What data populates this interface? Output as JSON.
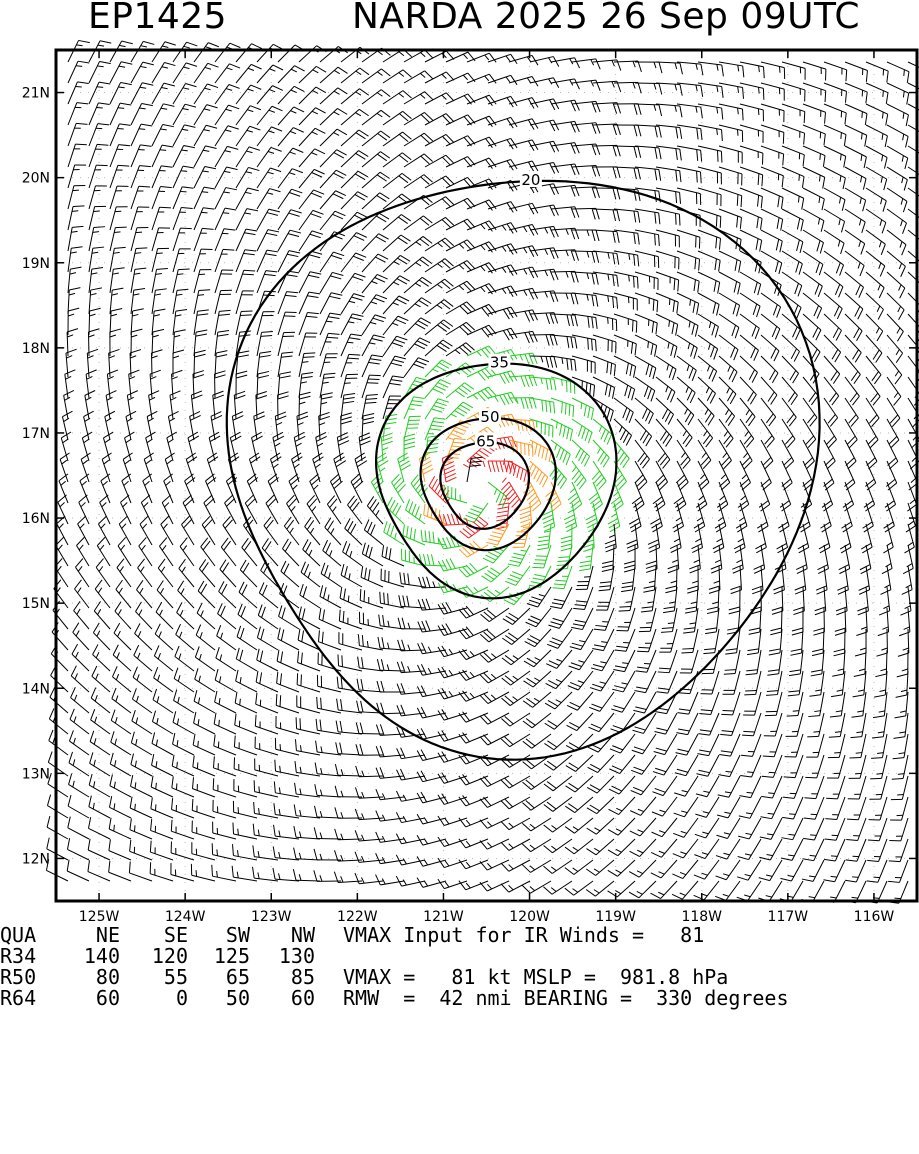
{
  "header": {
    "storm_id": "EP1425",
    "storm_info": "NARDA 2025 26 Sep 09UTC"
  },
  "map": {
    "lon_min": -125.5,
    "lon_max": -115.5,
    "lat_min": 11.5,
    "lat_max": 21.5,
    "lon_ticks": [
      {
        "value": -125,
        "label": "125W"
      },
      {
        "value": -124,
        "label": "124W"
      },
      {
        "value": -123,
        "label": "123W"
      },
      {
        "value": -122,
        "label": "122W"
      },
      {
        "value": -121,
        "label": "121W"
      },
      {
        "value": -120,
        "label": "120W"
      },
      {
        "value": -119,
        "label": "119W"
      },
      {
        "value": -118,
        "label": "118W"
      },
      {
        "value": -117,
        "label": "117W"
      },
      {
        "value": -116,
        "label": "116W"
      }
    ],
    "lat_ticks": [
      {
        "value": 12,
        "label": "12N"
      },
      {
        "value": 13,
        "label": "13N"
      },
      {
        "value": 14,
        "label": "14N"
      },
      {
        "value": 15,
        "label": "15N"
      },
      {
        "value": 16,
        "label": "16N"
      },
      {
        "value": 17,
        "label": "17N"
      },
      {
        "value": 18,
        "label": "18N"
      },
      {
        "value": 19,
        "label": "19N"
      },
      {
        "value": 20,
        "label": "20N"
      },
      {
        "value": 21,
        "label": "21N"
      }
    ],
    "center": {
      "lon": -120.6,
      "lat": 16.35
    },
    "barb_colors": {
      "below_34": "#000000",
      "34_to_49": "#22cc22",
      "50_to_63": "#ff9922",
      "64_plus": "#ee2222"
    },
    "contours": [
      {
        "value": 20,
        "label": "20",
        "color": "#000000"
      },
      {
        "value": 35,
        "label": "35",
        "color": "#000000"
      },
      {
        "value": 50,
        "label": "50",
        "color": "#000000"
      },
      {
        "value": 65,
        "label": "65",
        "color": "#000000"
      }
    ]
  },
  "stats": {
    "header_row": {
      "c0": "QUA",
      "c1": "NE",
      "c2": "SE",
      "c3": "SW",
      "c4": "NW",
      "info": "VMAX Input for IR Winds =   81"
    },
    "rows": [
      {
        "c0": "R34",
        "c1": "140",
        "c2": "120",
        "c3": "125",
        "c4": "130",
        "info": ""
      },
      {
        "c0": "R50",
        "c1": "80",
        "c2": "55",
        "c3": "65",
        "c4": "85",
        "info": "VMAX =   81 kt MSLP =  981.8 hPa"
      },
      {
        "c0": "R64",
        "c1": "60",
        "c2": "0",
        "c3": "50",
        "c4": "60",
        "info": "RMW  =  42 nmi BEARING =  330 degrees"
      }
    ]
  }
}
